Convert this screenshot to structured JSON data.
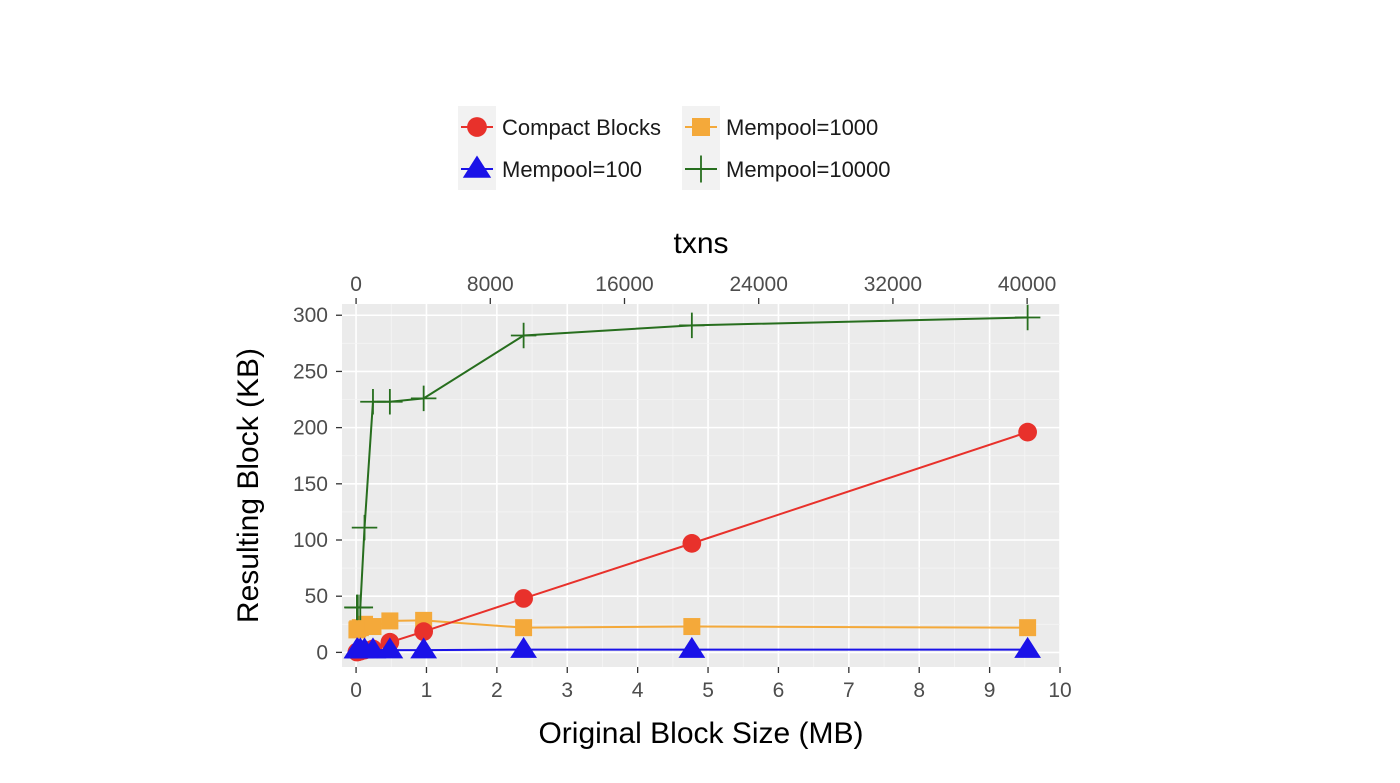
{
  "chart_data": {
    "type": "line",
    "xlabel": "Original Block Size (MB)",
    "x2label": "txns",
    "ylabel": "Resulting Block (KB)",
    "xlim": [
      -0.2,
      10
    ],
    "ylim": [
      -13,
      310
    ],
    "x_ticks": [
      0,
      1,
      2,
      3,
      4,
      5,
      6,
      7,
      8,
      9,
      10
    ],
    "x2_ticks": [
      0,
      8000,
      16000,
      24000,
      32000,
      40000
    ],
    "x2_per_x": 4196,
    "y_ticks": [
      0,
      50,
      100,
      150,
      200,
      250,
      300
    ],
    "grid": true,
    "legend_position": "top",
    "x": [
      0.012,
      0.024,
      0.06,
      0.12,
      0.24,
      0.48,
      0.96,
      2.38,
      4.77,
      9.54
    ],
    "series": [
      {
        "name": "Compact Blocks",
        "color": "#e8312b",
        "marker": "circle",
        "values": [
          0.3,
          0.5,
          1,
          2,
          3,
          9,
          18.5,
          48,
          97,
          196
        ]
      },
      {
        "name": "Mempool=1000",
        "color": "#f4a93a",
        "marker": "square",
        "values": [
          20,
          21,
          22,
          25,
          23,
          28,
          28.5,
          22,
          23,
          22
        ]
      },
      {
        "name": "Mempool=100",
        "color": "#1a12e8",
        "marker": "triangle",
        "values": [
          2,
          2,
          2,
          2,
          2,
          2,
          2,
          2.5,
          2.5,
          2.5
        ]
      },
      {
        "name": "Mempool=10000",
        "color": "#276e1e",
        "marker": "plus",
        "values": [
          40,
          40,
          40,
          111,
          223,
          223,
          226,
          282,
          291,
          298
        ]
      }
    ]
  }
}
